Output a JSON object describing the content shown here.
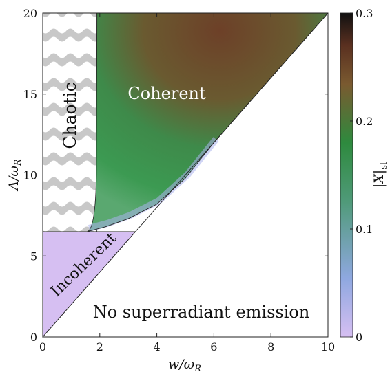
{
  "chart_data": {
    "type": "heatmap",
    "xlabel": "w/ω_R",
    "ylabel": "Λ/ω_R",
    "xlim": [
      0,
      10
    ],
    "ylim": [
      0,
      20
    ],
    "x_ticks": [
      "0",
      "2",
      "4",
      "6",
      "8",
      "10"
    ],
    "y_ticks": [
      "0",
      "5",
      "10",
      "15",
      "20"
    ],
    "colorbar": {
      "label": "|X|_st",
      "range": [
        0,
        0.3
      ],
      "ticks": [
        "0",
        "0.1",
        "0.2",
        "0.3"
      ],
      "colors": [
        "#d6bff2",
        "#8fa8e0",
        "#4f9a78",
        "#2e8a3e",
        "#7a5a30",
        "#5a3020",
        "#111111"
      ]
    },
    "regions": [
      {
        "name": "Chaotic",
        "label": "Chaotic",
        "x_range": [
          0,
          1.9
        ],
        "y_range": [
          6.5,
          20
        ],
        "fill": "hatched-gray"
      },
      {
        "name": "Coherent",
        "label": "Coherent",
        "value_max": 0.27
      },
      {
        "name": "Incoherent",
        "label": "Incoherent",
        "y_max": 6.5,
        "fill": "#d6bff2"
      },
      {
        "name": "No superradiant emission",
        "label": "No superradiant emission",
        "boundary": "Λ = 2w"
      }
    ],
    "boundary_points": {
      "coherent_lower": [
        [
          1.55,
          6.5
        ],
        [
          2.2,
          6.8
        ],
        [
          3.0,
          7.3
        ],
        [
          4.0,
          8.2
        ],
        [
          5.0,
          9.8
        ],
        [
          6.0,
          12.0
        ],
        [
          8.0,
          16.0
        ],
        [
          10.0,
          20.0
        ]
      ],
      "diagonal": [
        [
          0,
          0
        ],
        [
          10,
          20
        ]
      ]
    }
  }
}
